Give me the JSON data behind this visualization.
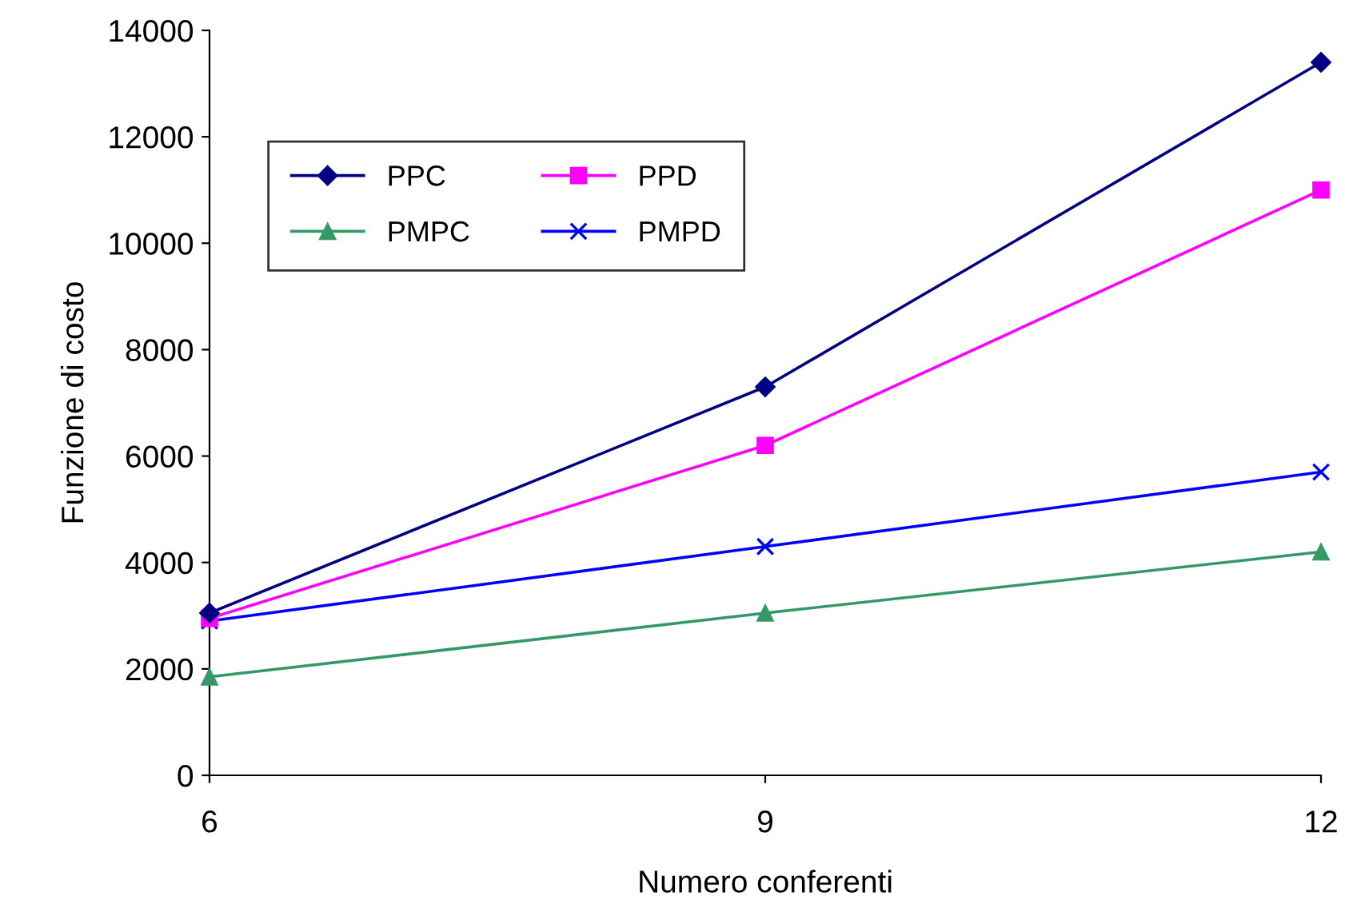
{
  "chart_data": {
    "type": "line",
    "xlabel": "Numero conferenti",
    "ylabel": "Funzione di costo",
    "x": [
      6,
      9,
      12
    ],
    "xlim": [
      6,
      12
    ],
    "xticks": [
      6,
      9,
      12
    ],
    "ylim": [
      0,
      14000
    ],
    "yticks": [
      0,
      2000,
      4000,
      6000,
      8000,
      10000,
      12000,
      14000
    ],
    "grid": false,
    "legend": "top left",
    "series": [
      {
        "name": "PPC",
        "color": "#000080",
        "marker": "diamond",
        "values": [
          3050,
          7300,
          13400
        ]
      },
      {
        "name": "PPD",
        "color": "#ff00ff",
        "marker": "square",
        "values": [
          2950,
          6200,
          11000
        ]
      },
      {
        "name": "PMPC",
        "color": "#339966",
        "marker": "triangle",
        "values": [
          1850,
          3050,
          4200
        ]
      },
      {
        "name": "PMPD",
        "color": "#0000ff",
        "marker": "cross",
        "values": [
          2900,
          4300,
          5700
        ]
      }
    ]
  }
}
